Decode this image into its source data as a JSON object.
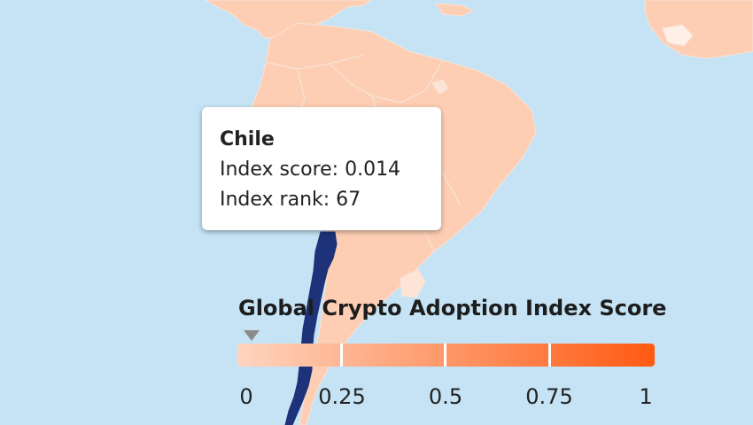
{
  "map": {
    "ocean_color": "#c5e3f4",
    "land_color": "#fdceb4",
    "highlight_color": "#1d3278",
    "border_color": "#f7e4d8"
  },
  "tooltip": {
    "country": "Chile",
    "score_line": "Index score: 0.014",
    "rank_line": "Index rank: 67"
  },
  "legend": {
    "title": "Global Crypto Adoption Index Score",
    "ticks": [
      "0",
      "0.25",
      "0.5",
      "0.75",
      "1"
    ],
    "gradient_start": "#fed5c0",
    "gradient_end": "#ff5a12",
    "selected_value": 0.014
  }
}
